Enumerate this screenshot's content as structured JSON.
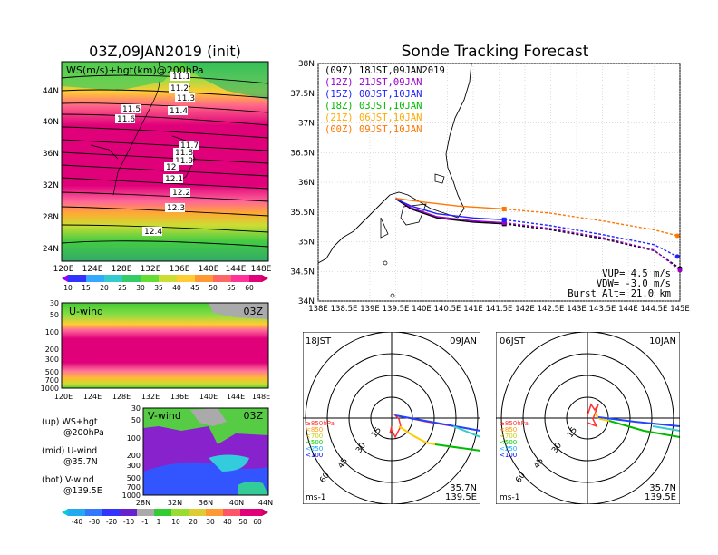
{
  "colors": {
    "magenta": "#d6006f",
    "pink": "#f070a0",
    "orange": "#ff9933",
    "yellow": "#ffee33",
    "green": "#33cc33",
    "lightgreen": "#99ee66",
    "cyan": "#33ccff",
    "purple": "#8800cc",
    "blue": "#3333ff",
    "darkblue": "#0000aa",
    "grey": "#aaaaaa"
  },
  "left": {
    "title": "03Z,09JAN2019 (init)",
    "map_label": "WS(m/s)+hgt(km)@200hPa",
    "lat_labels": [
      "44N",
      "40N",
      "36N",
      "32N",
      "28N",
      "24N"
    ],
    "lon_labels": [
      "120E",
      "124E",
      "128E",
      "132E",
      "136E",
      "140E",
      "144E",
      "148E"
    ],
    "contour_labels": [
      "11.1",
      "11.2",
      "11.3",
      "11.4",
      "11.5",
      "11.6",
      "11.7",
      "11.8",
      "11.9",
      "12",
      "12.1",
      "12.2",
      "12.3",
      "12.4"
    ],
    "colorbar1": [
      "10",
      "15",
      "20",
      "25",
      "30",
      "35",
      "40",
      "45",
      "50",
      "55",
      "60"
    ],
    "u_label": "U-wind",
    "u_time": "03Z",
    "p_labels": [
      "30",
      "50",
      "100",
      "200",
      "300",
      "500",
      "700",
      "1000"
    ],
    "v_label": "V-wind",
    "v_time": "03Z",
    "v_lat_labels": [
      "28N",
      "32N",
      "36N",
      "40N",
      "44N"
    ],
    "colorbar2": [
      "-40",
      "-30",
      "-20",
      "-10",
      "-1",
      "1",
      "10",
      "20",
      "30",
      "40",
      "50",
      "60"
    ],
    "legend": {
      "up1": "(up) WS+hgt",
      "up2": "@200hPa",
      "mid1": "(mid) U-wind",
      "mid2": "@35.7N",
      "bot1": "(bot) V-wind",
      "bot2": "@139.5E"
    }
  },
  "right": {
    "title": "Sonde Tracking Forecast",
    "lat_labels": [
      "38N",
      "37.5N",
      "37N",
      "36.5N",
      "36N",
      "35.5N",
      "35N",
      "34.5N",
      "34N"
    ],
    "lon_labels": [
      "138E",
      "138.5E",
      "139E",
      "139.5E",
      "140E",
      "140.5E",
      "141E",
      "141.5E",
      "142E",
      "142.5E",
      "143E",
      "143.5E",
      "144E",
      "144.5E",
      "145E"
    ],
    "legend": [
      {
        "tag": "(09Z)",
        "text": "18JST,09JAN2019",
        "color": "#000000"
      },
      {
        "tag": "(12Z)",
        "text": "21JST,09JAN",
        "color": "#9900cc"
      },
      {
        "tag": "(15Z)",
        "text": "00JST,10JAN",
        "color": "#2222ff"
      },
      {
        "tag": "(18Z)",
        "text": "03JST,10JAN",
        "color": "#00bb00"
      },
      {
        "tag": "(21Z)",
        "text": "06JST,10JAN",
        "color": "#ffaa00"
      },
      {
        "tag": "(00Z)",
        "text": "09JST,10JAN",
        "color": "#ff7700"
      }
    ],
    "vup": "VUP= 4.5 m/s",
    "vdw": "VDW= -3.0 m/s",
    "burst": "Burst Alt= 21.0 km"
  },
  "hodo1": {
    "time": "18JST",
    "date": "09JAN",
    "lat": "35.7N",
    "lon": "139.5E",
    "unit": "ms-1",
    "rings": [
      "15",
      "30",
      "45",
      "60"
    ],
    "levels": [
      "≥850hPa",
      "<850",
      "<700",
      "<500",
      "<250",
      "<100"
    ],
    "level_colors": [
      "#ff3333",
      "#ff9900",
      "#cccc00",
      "#00cc00",
      "#00aaff",
      "#0000ff"
    ]
  },
  "hodo2": {
    "time": "06JST",
    "date": "10JAN",
    "lat": "35.7N",
    "lon": "139.5E",
    "unit": "ms-1",
    "rings": [
      "15",
      "30",
      "45",
      "60"
    ],
    "levels": [
      "≥850hPa",
      "<850",
      "<700",
      "<500",
      "<250",
      "<100"
    ],
    "level_colors": [
      "#ff3333",
      "#ff9900",
      "#cccc00",
      "#00cc00",
      "#00aaff",
      "#0000ff"
    ]
  },
  "chart_data": {
    "type": "line",
    "title": "Sonde Tracking Forecast",
    "xlabel": "",
    "ylabel": "",
    "xlim": [
      138,
      145
    ],
    "ylim": [
      34,
      38
    ],
    "series": [
      {
        "name": "(09Z) 18JST,09JAN2019",
        "color": "#000000",
        "x": [
          139.5,
          139.8,
          140.3,
          141.0,
          141.6,
          142.5,
          143.5,
          144.5,
          145.0
        ],
        "y": [
          35.72,
          35.55,
          35.4,
          35.33,
          35.3,
          35.2,
          35.05,
          34.85,
          34.55
        ]
      },
      {
        "name": "(12Z) 21JST,09JAN",
        "color": "#9900cc",
        "x": [
          139.5,
          139.8,
          140.3,
          141.0,
          141.6,
          142.5,
          143.5,
          144.5,
          145.0
        ],
        "y": [
          35.74,
          35.57,
          35.42,
          35.35,
          35.32,
          35.22,
          35.07,
          34.86,
          34.52
        ]
      },
      {
        "name": "(15Z) 00JST,10JAN",
        "color": "#2222ff",
        "x": [
          139.5,
          139.8,
          140.3,
          141.0,
          141.6,
          142.5,
          143.5,
          144.5,
          144.95
        ],
        "y": [
          35.72,
          35.6,
          35.47,
          35.4,
          35.37,
          35.27,
          35.12,
          34.95,
          34.75
        ]
      },
      {
        "name": "(00Z) 09JST,10JAN",
        "color": "#ff7700",
        "x": [
          139.5,
          140.0,
          140.7,
          141.6,
          142.5,
          143.5,
          144.5,
          144.95
        ],
        "y": [
          35.73,
          35.67,
          35.6,
          35.55,
          35.48,
          35.35,
          35.2,
          35.1
        ]
      }
    ]
  }
}
